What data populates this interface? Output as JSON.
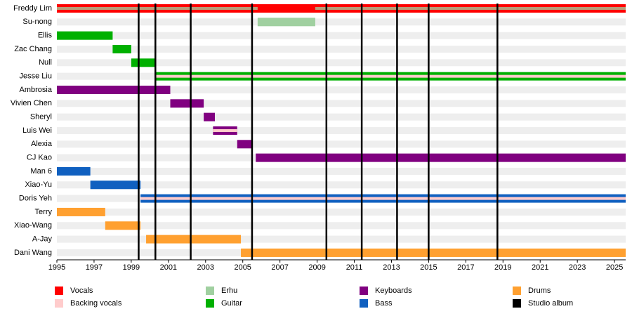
{
  "chart_data": {
    "type": "timeline",
    "xlim": [
      1995,
      2025.6
    ],
    "xticks": [
      1995,
      1997,
      1999,
      2001,
      2003,
      2005,
      2007,
      2009,
      2011,
      2013,
      2015,
      2017,
      2019,
      2021,
      2023,
      2025
    ],
    "roles": [
      {
        "name": "Vocals",
        "color": "#ff0000"
      },
      {
        "name": "Backing vocals",
        "color": "#ffcccc"
      },
      {
        "name": "Erhu",
        "color": "#a0d0a0"
      },
      {
        "name": "Guitar",
        "color": "#00b000"
      },
      {
        "name": "Keyboards",
        "color": "#800080"
      },
      {
        "name": "Bass",
        "color": "#1060c0"
      },
      {
        "name": "Drums",
        "color": "#ffa030"
      },
      {
        "name": "Studio album",
        "color": "#000000"
      }
    ],
    "studio_albums": [
      1999.4,
      2000.3,
      2002.2,
      2005.5,
      2009.5,
      2011.4,
      2013.3,
      2015.0,
      2018.7
    ],
    "members": [
      {
        "name": "Freddy Lim",
        "periods": [
          {
            "role": "Vocals",
            "start": 1995,
            "end": 2025.6
          }
        ],
        "stripes": [
          {
            "role": "Erhu",
            "start": 1995,
            "end": 2005.8
          },
          {
            "role": "Erhu",
            "start": 2008.9,
            "end": 2025.6
          }
        ]
      },
      {
        "name": "Su-nong",
        "periods": [
          {
            "role": "Erhu",
            "start": 2005.8,
            "end": 2008.9
          }
        ]
      },
      {
        "name": "Ellis",
        "periods": [
          {
            "role": "Guitar",
            "start": 1995,
            "end": 1998.0
          }
        ]
      },
      {
        "name": "Zac Chang",
        "periods": [
          {
            "role": "Guitar",
            "start": 1998.0,
            "end": 1999.0
          }
        ]
      },
      {
        "name": "Null",
        "periods": [
          {
            "role": "Guitar",
            "start": 1999.0,
            "end": 2000.3
          }
        ]
      },
      {
        "name": "Jesse Liu",
        "periods": [
          {
            "role": "Guitar",
            "start": 2000.3,
            "end": 2025.6
          }
        ],
        "stripes": [
          {
            "role": "Backing vocals",
            "start": 2000.3,
            "end": 2025.6
          }
        ]
      },
      {
        "name": "Ambrosia",
        "periods": [
          {
            "role": "Keyboards",
            "start": 1995,
            "end": 2001.1
          }
        ]
      },
      {
        "name": "Vivien Chen",
        "periods": [
          {
            "role": "Keyboards",
            "start": 2001.1,
            "end": 2002.9
          }
        ]
      },
      {
        "name": "Sheryl",
        "periods": [
          {
            "role": "Keyboards",
            "start": 2002.9,
            "end": 2003.5
          }
        ]
      },
      {
        "name": "Luis Wei",
        "periods": [
          {
            "role": "Keyboards",
            "start": 2003.4,
            "end": 2004.7
          }
        ],
        "stripes": [
          {
            "role": "Backing vocals",
            "start": 2003.4,
            "end": 2004.7
          }
        ]
      },
      {
        "name": "Alexia",
        "periods": [
          {
            "role": "Keyboards",
            "start": 2004.7,
            "end": 2005.5
          }
        ]
      },
      {
        "name": "CJ Kao",
        "periods": [
          {
            "role": "Keyboards",
            "start": 2005.7,
            "end": 2025.6
          }
        ]
      },
      {
        "name": "Man 6",
        "periods": [
          {
            "role": "Bass",
            "start": 1995,
            "end": 1996.8
          }
        ]
      },
      {
        "name": "Xiao-Yu",
        "periods": [
          {
            "role": "Bass",
            "start": 1996.8,
            "end": 1999.5
          }
        ]
      },
      {
        "name": "Doris Yeh",
        "periods": [
          {
            "role": "Bass",
            "start": 1999.5,
            "end": 2025.6
          }
        ],
        "stripes": [
          {
            "role": "Backing vocals",
            "start": 1999.5,
            "end": 2025.6
          }
        ]
      },
      {
        "name": "Terry",
        "periods": [
          {
            "role": "Drums",
            "start": 1995,
            "end": 1997.6
          }
        ]
      },
      {
        "name": "Xiao-Wang",
        "periods": [
          {
            "role": "Drums",
            "start": 1997.6,
            "end": 1999.5
          }
        ]
      },
      {
        "name": "A-Jay",
        "periods": [
          {
            "role": "Drums",
            "start": 1999.8,
            "end": 2004.9
          }
        ]
      },
      {
        "name": "Dani Wang",
        "periods": [
          {
            "role": "Drums",
            "start": 2004.9,
            "end": 2025.6
          }
        ]
      }
    ]
  }
}
